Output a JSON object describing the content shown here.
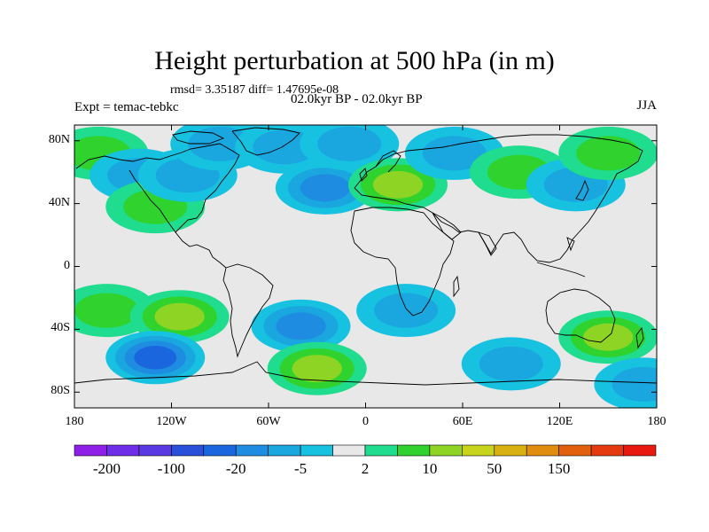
{
  "title": "Height perturbation at 500 hPa (in m)",
  "stats": "rmsd= 3.35187 diff= 1.47695e-08",
  "experiment": "Expt = temac-tebkc",
  "period": "02.0kyr BP - 02.0kyr BP",
  "season": "JJA",
  "lat_labels": [
    "80N",
    "40N",
    "0",
    "40S",
    "80S"
  ],
  "lat_values": [
    80,
    40,
    0,
    -40,
    -80
  ],
  "lon_labels": [
    "180",
    "120W",
    "60W",
    "0",
    "60E",
    "120E",
    "180"
  ],
  "lon_values": [
    -180,
    -120,
    -60,
    0,
    60,
    120,
    180
  ],
  "colorbar": {
    "colors": [
      "#8f1fe6",
      "#6e2ee8",
      "#5a39e3",
      "#2a4fd9",
      "#1a66de",
      "#1e8ce0",
      "#1aa6df",
      "#16c2e0",
      "#e8e8e8",
      "#1fdc8e",
      "#30d22e",
      "#8ed424",
      "#c8d41c",
      "#d8b012",
      "#e08c0e",
      "#e2600c",
      "#e43a0e",
      "#e81a10"
    ],
    "labels": [
      "-200",
      "-100",
      "-20",
      "-5",
      "2",
      "10",
      "50",
      "150"
    ]
  },
  "chart_data": {
    "type": "heatmap",
    "title": "Height perturbation at 500 hPa (in m)",
    "variable": "500 hPa height perturbation",
    "units": "m",
    "lon_range": [
      -180,
      180
    ],
    "lat_range": [
      -90,
      90
    ],
    "blobs": [
      {
        "lon": -165,
        "lat": 72,
        "level": 1
      },
      {
        "lon": -140,
        "lat": 58,
        "level": -1
      },
      {
        "lon": -130,
        "lat": 38,
        "level": 1
      },
      {
        "lon": -110,
        "lat": 58,
        "level": -1
      },
      {
        "lon": -90,
        "lat": 78,
        "level": -1
      },
      {
        "lon": -50,
        "lat": 76,
        "level": -1
      },
      {
        "lon": -25,
        "lat": 50,
        "level": -2
      },
      {
        "lon": -10,
        "lat": 78,
        "level": -1
      },
      {
        "lon": 20,
        "lat": 52,
        "level": 2
      },
      {
        "lon": 55,
        "lat": 72,
        "level": -1
      },
      {
        "lon": 95,
        "lat": 60,
        "level": 1
      },
      {
        "lon": 130,
        "lat": 52,
        "level": -1
      },
      {
        "lon": 150,
        "lat": 72,
        "level": 1
      },
      {
        "lon": -160,
        "lat": -28,
        "level": 1
      },
      {
        "lon": -115,
        "lat": -32,
        "level": 2
      },
      {
        "lon": -130,
        "lat": -58,
        "level": -3
      },
      {
        "lon": -40,
        "lat": -38,
        "level": -2
      },
      {
        "lon": -30,
        "lat": -65,
        "level": 2
      },
      {
        "lon": 25,
        "lat": -28,
        "level": -1
      },
      {
        "lon": 90,
        "lat": -62,
        "level": -1
      },
      {
        "lon": 150,
        "lat": -45,
        "level": 2
      },
      {
        "lon": 172,
        "lat": -75,
        "level": -1
      }
    ]
  }
}
